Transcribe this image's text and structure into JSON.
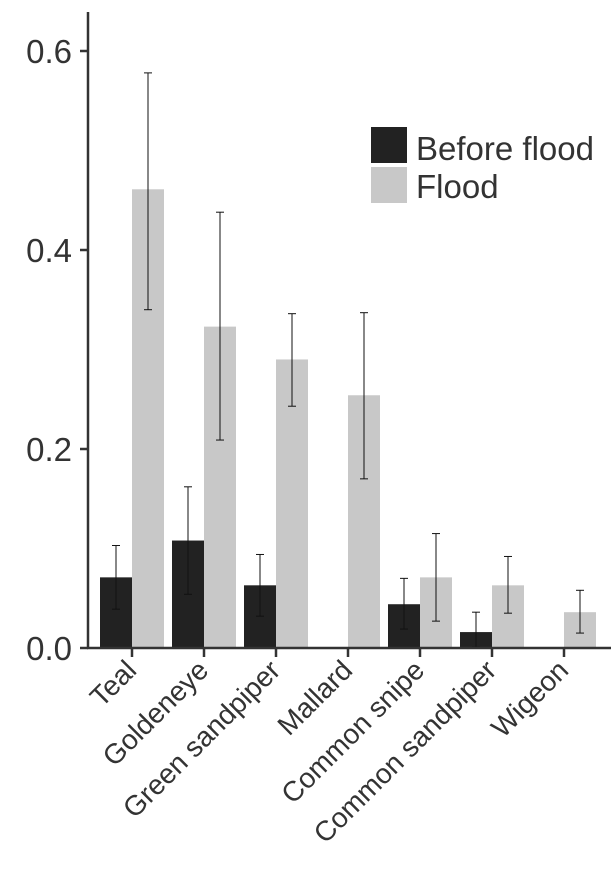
{
  "chart_data": {
    "type": "bar",
    "title": "",
    "xlabel": "",
    "ylabel": "",
    "ylim": [
      0,
      0.64
    ],
    "yticks": [
      0.0,
      0.2,
      0.4,
      0.6
    ],
    "ytick_labels": [
      "0.0",
      "0.2",
      "0.4",
      "0.6"
    ],
    "categories": [
      "Teal",
      "Goldeneye",
      "Green sandpiper",
      "Mallard",
      "Common snipe",
      "Common sandpiper",
      "Wigeon"
    ],
    "series": [
      {
        "name": "Before flood",
        "color": "#222222",
        "values": [
          0.071,
          0.108,
          0.063,
          0.0,
          0.044,
          0.016,
          0.0
        ],
        "err_low": [
          0.039,
          0.054,
          0.032,
          null,
          0.019,
          0.001,
          null
        ],
        "err_high": [
          0.103,
          0.162,
          0.094,
          null,
          0.07,
          0.036,
          null
        ]
      },
      {
        "name": "Flood",
        "color": "#c8c8c8",
        "values": [
          0.461,
          0.323,
          0.29,
          0.254,
          0.071,
          0.063,
          0.036
        ],
        "err_low": [
          0.34,
          0.209,
          0.243,
          0.17,
          0.027,
          0.035,
          0.015
        ],
        "err_high": [
          0.578,
          0.438,
          0.336,
          0.337,
          0.115,
          0.092,
          0.058
        ]
      }
    ],
    "grid": false,
    "legend_position": "top-right"
  }
}
